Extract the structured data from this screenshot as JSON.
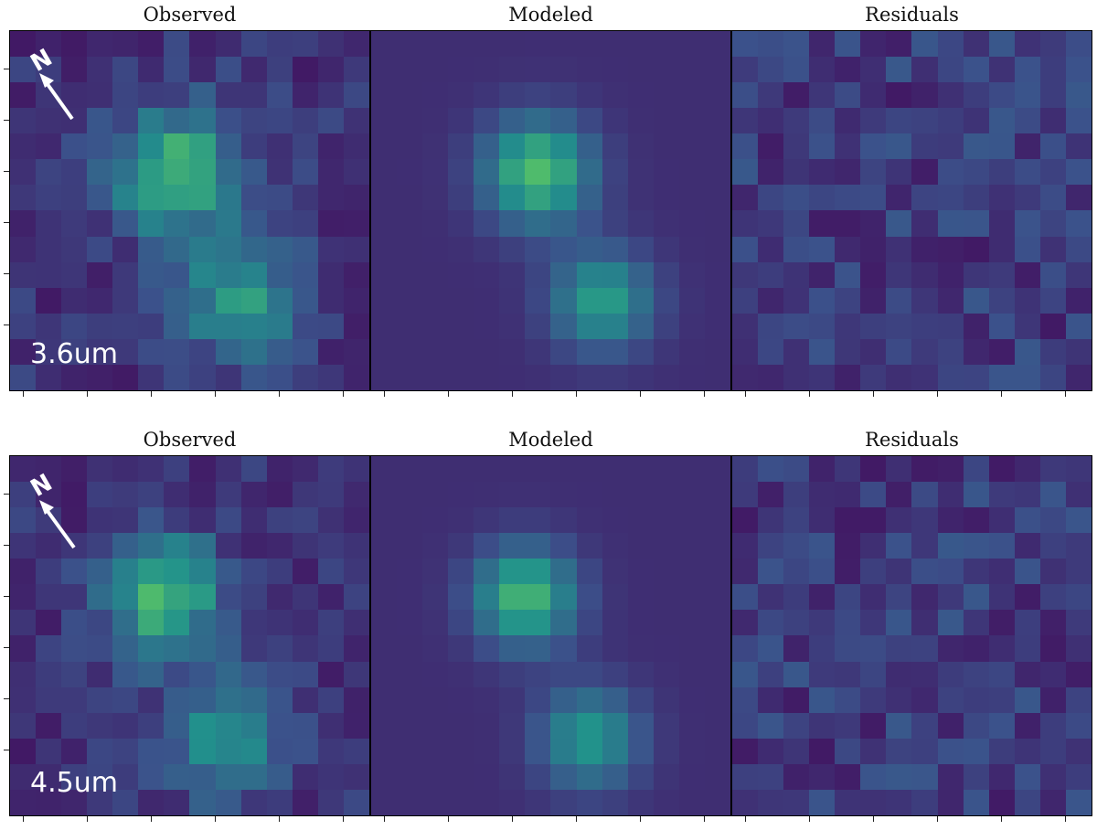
{
  "rows": [
    {
      "band_label": "3.6um",
      "panels": [
        {
          "title": "Observed"
        },
        {
          "title": "Modeled"
        },
        {
          "title": "Residuals"
        }
      ]
    },
    {
      "band_label": "4.5um",
      "panels": [
        {
          "title": "Observed"
        },
        {
          "title": "Modeled"
        },
        {
          "title": "Residuals"
        }
      ]
    }
  ],
  "north_label": "N",
  "colormap": [
    "#440154",
    "#3b528b",
    "#21918c",
    "#5ec962"
  ]
}
